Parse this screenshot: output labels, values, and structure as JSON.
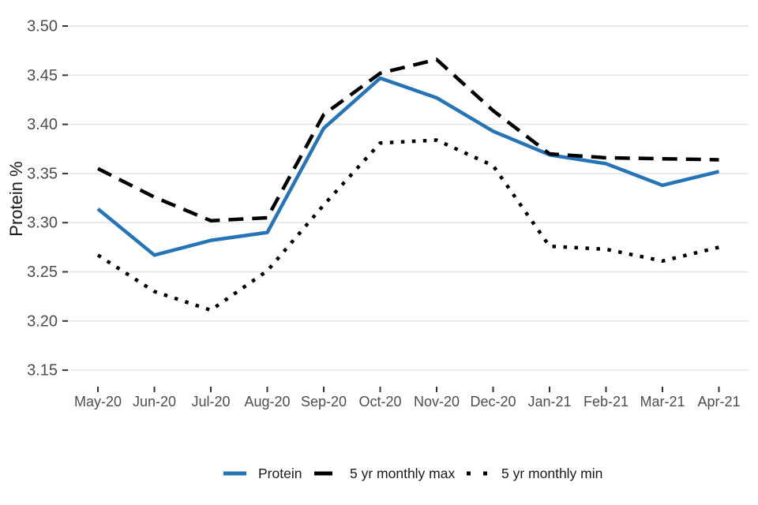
{
  "chart_data": {
    "type": "line",
    "title": "",
    "xlabel": "",
    "ylabel": "Protein %",
    "categories": [
      "May-20",
      "Jun-20",
      "Jul-20",
      "Aug-20",
      "Sep-20",
      "Oct-20",
      "Nov-20",
      "Dec-20",
      "Jan-21",
      "Feb-21",
      "Mar-21",
      "Apr-21"
    ],
    "series": [
      {
        "name": "Protein",
        "style": "solid",
        "color": "#2474b7",
        "values": [
          3.314,
          3.267,
          3.282,
          3.29,
          3.396,
          3.447,
          3.427,
          3.393,
          3.369,
          3.36,
          3.338,
          3.352
        ]
      },
      {
        "name": "5 yr monthly max",
        "style": "dashed",
        "color": "#000000",
        "values": [
          3.355,
          3.326,
          3.302,
          3.305,
          3.41,
          3.452,
          3.466,
          3.414,
          3.37,
          3.366,
          3.365,
          3.364
        ]
      },
      {
        "name": "5 yr monthly min",
        "style": "dotted",
        "color": "#000000",
        "values": [
          3.267,
          3.23,
          3.211,
          3.251,
          3.318,
          3.381,
          3.384,
          3.358,
          3.276,
          3.273,
          3.261,
          3.275
        ]
      }
    ],
    "y_ticks": [
      3.15,
      3.2,
      3.25,
      3.3,
      3.35,
      3.4,
      3.45,
      3.5
    ],
    "y_tick_labels": [
      "3.15",
      "3.20",
      "3.25",
      "3.30",
      "3.35",
      "3.40",
      "3.45",
      "3.50"
    ],
    "ylim": [
      3.133,
      3.517
    ],
    "grid": "horizontal",
    "legend_position": "bottom"
  },
  "colors": {
    "background": "#ffffff",
    "gridline": "#e2e2e2",
    "tick_mark": "#333333",
    "axis_text": "#4d4d4d",
    "axis_title": "#1a1a1a",
    "legend_text": "#1a1a1a",
    "protein_line": "#2474b7",
    "minmax_line": "#000000"
  }
}
